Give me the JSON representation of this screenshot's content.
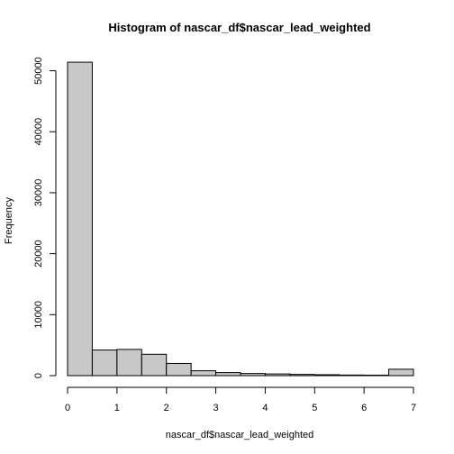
{
  "chart_data": {
    "type": "bar",
    "title": "Histogram of nascar_df$nascar_lead_weighted",
    "xlabel": "nascar_df$nascar_lead_weighted",
    "ylabel": "Frequency",
    "bar_color": "#c8c8c8",
    "outline_color": "#000000",
    "xlim": [
      0,
      7
    ],
    "ylim": [
      0,
      52000
    ],
    "x_ticks": [
      0,
      1,
      2,
      3,
      4,
      5,
      6,
      7
    ],
    "y_ticks": [
      0,
      10000,
      20000,
      30000,
      40000,
      50000
    ],
    "bins": [
      {
        "from": 0.0,
        "to": 0.5,
        "count": 51400
      },
      {
        "from": 0.5,
        "to": 1.0,
        "count": 4200
      },
      {
        "from": 1.0,
        "to": 1.5,
        "count": 4300
      },
      {
        "from": 1.5,
        "to": 2.0,
        "count": 3500
      },
      {
        "from": 2.0,
        "to": 2.5,
        "count": 2000
      },
      {
        "from": 2.5,
        "to": 3.0,
        "count": 800
      },
      {
        "from": 3.0,
        "to": 3.5,
        "count": 500
      },
      {
        "from": 3.5,
        "to": 4.0,
        "count": 350
      },
      {
        "from": 4.0,
        "to": 4.5,
        "count": 280
      },
      {
        "from": 4.5,
        "to": 5.0,
        "count": 200
      },
      {
        "from": 5.0,
        "to": 5.5,
        "count": 150
      },
      {
        "from": 5.5,
        "to": 6.0,
        "count": 100
      },
      {
        "from": 6.0,
        "to": 6.5,
        "count": 80
      },
      {
        "from": 6.5,
        "to": 7.0,
        "count": 1050
      }
    ]
  }
}
